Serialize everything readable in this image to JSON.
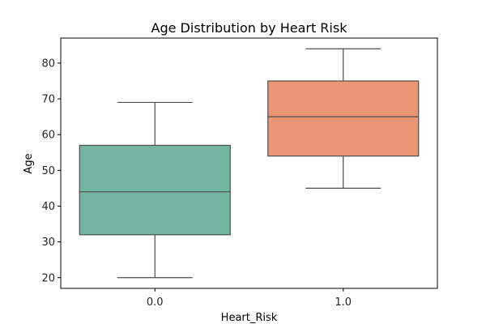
{
  "chart_data": {
    "type": "box",
    "title": "Age Distribution by Heart Risk",
    "xlabel": "Heart_Risk",
    "ylabel": "Age",
    "ylim": [
      17,
      87
    ],
    "yticks": [
      20,
      30,
      40,
      50,
      60,
      70,
      80
    ],
    "categories": [
      "0.0",
      "1.0"
    ],
    "boxes": [
      {
        "category": "0.0",
        "whisker_low": 20,
        "q1": 32,
        "median": 44,
        "q3": 57,
        "whisker_high": 69,
        "color": "#72b6a1"
      },
      {
        "category": "1.0",
        "whisker_low": 45,
        "q1": 54,
        "median": 65,
        "q3": 75,
        "whisker_high": 84,
        "color": "#e99675"
      }
    ],
    "grid": false,
    "edge_color": "#4d4d4d"
  }
}
